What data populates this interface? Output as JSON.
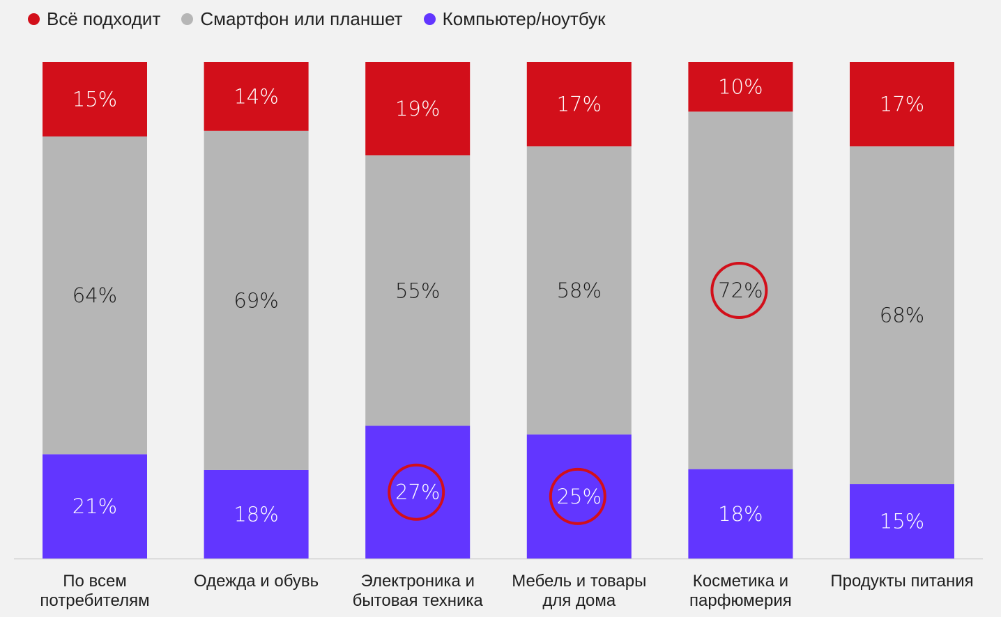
{
  "legend": {
    "items": [
      {
        "label": "Всё подходит",
        "color": "#d20f1a"
      },
      {
        "label": "Смартфон или планшет",
        "color": "#b6b6b6"
      },
      {
        "label": "Компьютер/ноутбук",
        "color": "#6236ff"
      }
    ]
  },
  "chart_data": {
    "type": "bar",
    "stacked": true,
    "categories": [
      [
        "По всем",
        "потребителям"
      ],
      [
        "Одежда и обувь"
      ],
      [
        "Электроника и",
        "бытовая техника"
      ],
      [
        "Мебель и товары",
        "для дома"
      ],
      [
        "Косметика и",
        "парфюмерия"
      ],
      [
        "Продукты питания"
      ]
    ],
    "series": [
      {
        "name": "Компьютер/ноутбук",
        "color": "#6236ff",
        "label_color": "#ffffff",
        "values": [
          21,
          18,
          27,
          25,
          18,
          15
        ]
      },
      {
        "name": "Смартфон или планшет",
        "color": "#b6b6b6",
        "label_color": "#1a1a1a",
        "values": [
          64,
          69,
          55,
          58,
          72,
          68
        ]
      },
      {
        "name": "Всё подходит",
        "color": "#d20f1a",
        "label_color": "#ffffff",
        "values": [
          15,
          14,
          19,
          17,
          10,
          17
        ]
      }
    ],
    "highlighted": [
      {
        "series": "Компьютер/ноутбук",
        "category_index": 2
      },
      {
        "series": "Компьютер/ноутбук",
        "category_index": 3
      },
      {
        "series": "Смартфон или планшет",
        "category_index": 4
      }
    ],
    "highlight_color": "#d20f1a",
    "value_suffix": "%",
    "ylim": [
      0,
      100
    ],
    "grid": false,
    "legend_position": "top-left"
  }
}
